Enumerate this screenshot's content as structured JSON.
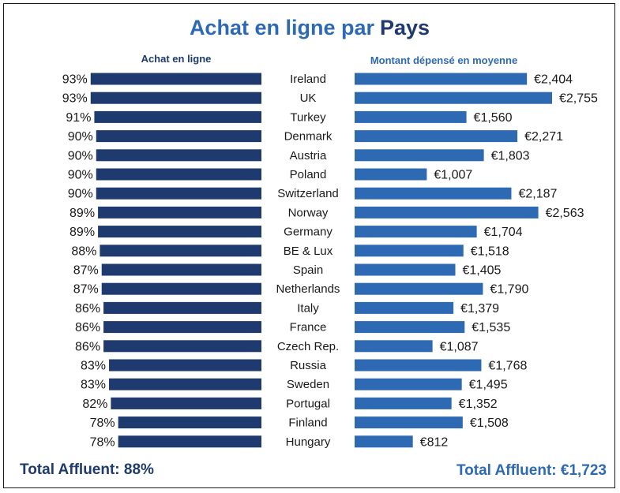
{
  "title": {
    "part1": "Achat en ligne par",
    "part2": "Pays"
  },
  "colors": {
    "left_bar": "#1f3a6e",
    "right_bar": "#2e6ab4",
    "title_blue": "#2e6ab4",
    "title_dark": "#1f3a6e",
    "total_left": "#1f3a6e",
    "total_right": "#2e6ab4"
  },
  "totals": {
    "left": "Total Affluent: 88%",
    "right": "Total Affluent: €1,723"
  },
  "chart_data": {
    "type": "bar",
    "orientation": "horizontal",
    "layout": "back-to-back",
    "categories": [
      "Ireland",
      "UK",
      "Turkey",
      "Denmark",
      "Austria",
      "Poland",
      "Switzerland",
      "Norway",
      "Germany",
      "BE & Lux",
      "Spain",
      "Netherlands",
      "Italy",
      "France",
      "Czech Rep.",
      "Russia",
      "Sweden",
      "Portugal",
      "Finland",
      "Hungary"
    ],
    "series": [
      {
        "name": "Achat en ligne",
        "values": [
          93,
          93,
          91,
          90,
          90,
          90,
          90,
          89,
          89,
          88,
          87,
          87,
          86,
          86,
          86,
          83,
          83,
          82,
          78,
          78
        ],
        "labels": [
          "93%",
          "93%",
          "91%",
          "90%",
          "90%",
          "90%",
          "90%",
          "89%",
          "89%",
          "88%",
          "87%",
          "87%",
          "86%",
          "86%",
          "86%",
          "83%",
          "83%",
          "82%",
          "78%",
          "78%"
        ]
      },
      {
        "name": "Montant dépensé en moyenne",
        "values": [
          2404,
          2755,
          1560,
          2271,
          1803,
          1007,
          2187,
          2563,
          1704,
          1518,
          1405,
          1790,
          1379,
          1535,
          1087,
          1768,
          1495,
          1352,
          1508,
          812
        ],
        "labels": [
          "€2,404",
          "€2,755",
          "€1,560",
          "€2,271",
          "€1,803",
          "€1,007",
          "€2,187",
          "€2,563",
          "€1,704",
          "€1,518",
          "€1,405",
          "€1,790",
          "€1,379",
          "€1,535",
          "€1,087",
          "€1,768",
          "€1,495",
          "€1,352",
          "€1,508",
          "€812"
        ]
      }
    ]
  }
}
